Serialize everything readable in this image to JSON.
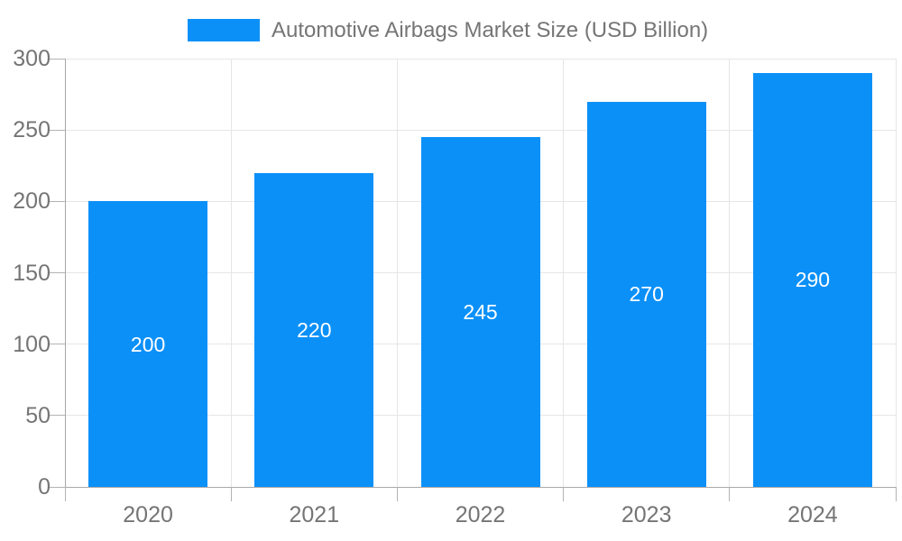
{
  "chart_data": {
    "type": "bar",
    "title": "Automotive Airbags Market Size (USD Billion)",
    "legend_position": "top",
    "categories": [
      "2020",
      "2021",
      "2022",
      "2023",
      "2024"
    ],
    "series": [
      {
        "name": "Automotive Airbags Market Size (USD Billion)",
        "values": [
          200,
          220,
          245,
          270,
          290
        ]
      }
    ],
    "value_labels": [
      "200",
      "220",
      "245",
      "270",
      "290"
    ],
    "xlabel": "",
    "ylabel": "",
    "ylim": [
      0,
      300
    ],
    "yticks": [
      0,
      50,
      100,
      150,
      200,
      250,
      300
    ],
    "ytick_labels": [
      "0",
      "50",
      "100",
      "150",
      "200",
      "250",
      "300"
    ],
    "grid": true,
    "colors": {
      "bar": "#0b90f8",
      "grid": "#e6e6e6",
      "axis": "#a8a8a8",
      "tick": "#b3b3b3",
      "text": "#757575",
      "value_text": "#ffffff",
      "background": "#ffffff"
    }
  }
}
